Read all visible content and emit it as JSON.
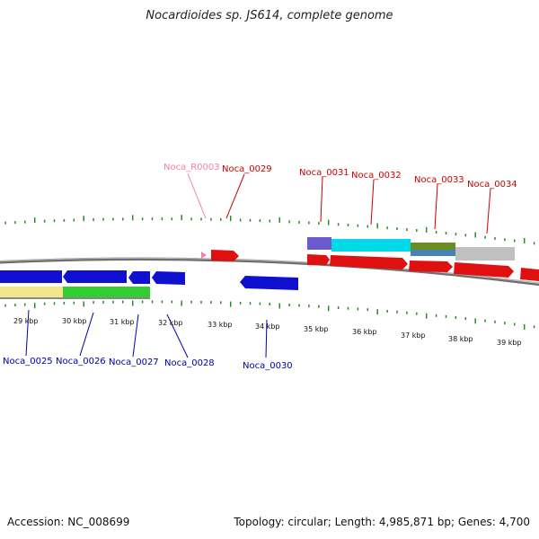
{
  "title": "Nocardioides sp. JS614, complete genome",
  "footer": {
    "accession": "Accession: NC_008699",
    "summary": "Topology: circular; Length: 4,985,871 bp; Genes: 4,700"
  },
  "colors": {
    "tick": "#2a8a2a",
    "backbone": "#7a7a7a",
    "forward_gene": "#e01010",
    "reverse_gene": "#1010d0",
    "forward_label": "#cc0000",
    "reverse_label": "#0000aa",
    "rna_label": "#f080b0"
  },
  "scale_labels": [
    "29 kbp",
    "30 kbp",
    "31 kbp",
    "32 kbp",
    "33 kbp",
    "34 kbp",
    "35 kbp",
    "36 kbp",
    "37 kbp",
    "38 kbp",
    "39 kbp"
  ],
  "gene_labels": {
    "top": [
      {
        "id": "rna",
        "text": "Noca_R0003",
        "kind": "rna"
      },
      {
        "id": "g29",
        "text": "Noca_0029",
        "kind": "forward"
      },
      {
        "id": "g31",
        "text": "Noca_0031",
        "kind": "forward"
      },
      {
        "id": "g32",
        "text": "Noca_0032",
        "kind": "forward"
      },
      {
        "id": "g33",
        "text": "Noca_0033",
        "kind": "forward"
      },
      {
        "id": "g34",
        "text": "Noca_0034",
        "kind": "forward"
      }
    ],
    "bottom": [
      {
        "id": "g25",
        "text": "Noca_0025",
        "kind": "reverse"
      },
      {
        "id": "g26",
        "text": "Noca_0026",
        "kind": "reverse"
      },
      {
        "id": "g27",
        "text": "Noca_0027",
        "kind": "reverse"
      },
      {
        "id": "g28",
        "text": "Noca_0028",
        "kind": "reverse"
      },
      {
        "id": "g30",
        "text": "Noca_0030",
        "kind": "reverse"
      }
    ]
  }
}
